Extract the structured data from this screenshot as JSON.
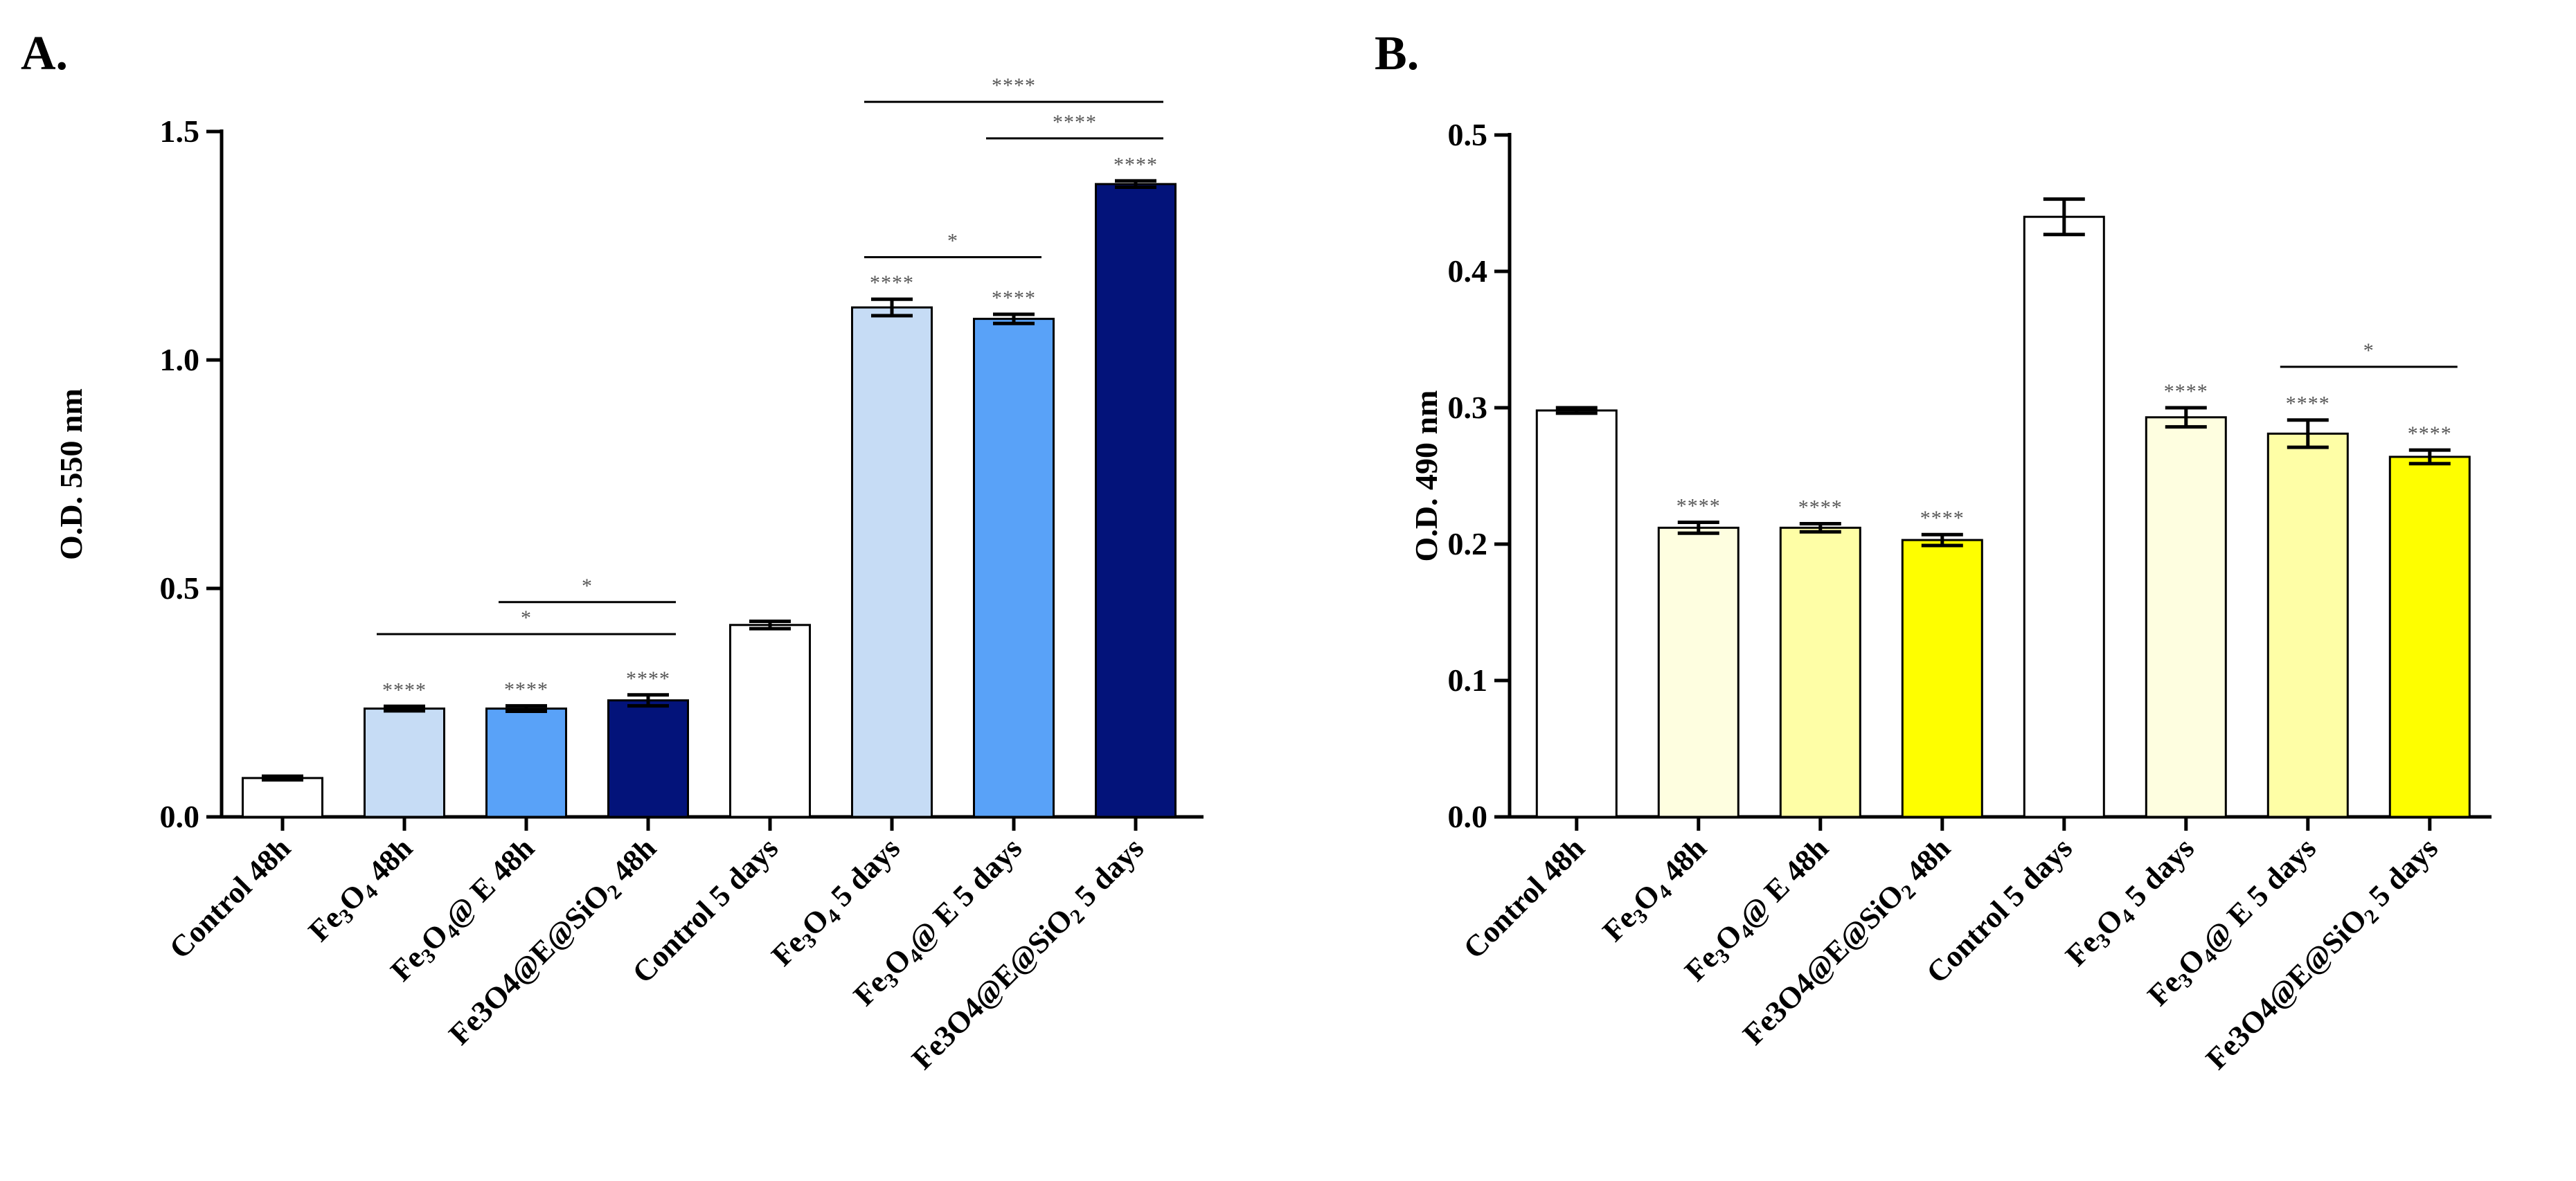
{
  "figure": {
    "label_A": "A.",
    "label_B": "B."
  },
  "chart_data": [
    {
      "type": "bar",
      "panel": "A.",
      "ylabel": "O.D. 550 nm",
      "ylim": [
        0,
        1.5
      ],
      "yticks": [
        "0.0",
        "0.5",
        "1.0",
        "1.5"
      ],
      "ytick_values": [
        0,
        0.5,
        1.0,
        1.5
      ],
      "categories": [
        {
          "main": "Control 48h"
        },
        {
          "main": "Fe3O4 48h",
          "subs": [
            "3",
            "4"
          ]
        },
        {
          "main": "Fe3O4@ E 48h",
          "subs": [
            "3",
            "4"
          ]
        },
        {
          "main": "Fe3O4@E@SiO2 48h",
          "subs": [
            "2"
          ]
        },
        {
          "main": "Control 5 days"
        },
        {
          "main": "Fe3O4 5 days",
          "subs": [
            "3",
            "4"
          ]
        },
        {
          "main": "Fe3O4@ E 5 days",
          "subs": [
            "3",
            "4"
          ]
        },
        {
          "main": "Fe3O4@E@SiO2 5 days",
          "subs": [
            "2"
          ]
        }
      ],
      "values": [
        0.085,
        0.237,
        0.237,
        0.255,
        0.42,
        1.115,
        1.09,
        1.385
      ],
      "errors": [
        0.004,
        0.005,
        0.006,
        0.012,
        0.008,
        0.018,
        0.01,
        0.007
      ],
      "colors": [
        "#ffffff",
        "#c6dcf5",
        "#59a2f8",
        "#03137a",
        "#ffffff",
        "#c6dcf5",
        "#59a2f8",
        "#03137a"
      ],
      "significance": [
        "",
        "****",
        "****",
        "****",
        "",
        "****",
        "****",
        "****"
      ],
      "brackets": [
        {
          "from": 2,
          "to": 3,
          "level": 0.47,
          "label": "*"
        },
        {
          "from": 1,
          "to": 3,
          "level": 0.4,
          "label": "*"
        },
        {
          "from": 5,
          "to": 6,
          "level": 1.225,
          "label": "*"
        },
        {
          "from": 6,
          "to": 7,
          "level": 1.485,
          "label": "****"
        },
        {
          "from": 5,
          "to": 7,
          "level": 1.565,
          "label": "****"
        }
      ]
    },
    {
      "type": "bar",
      "panel": "B.",
      "ylabel": "O.D. 490 nm",
      "ylim": [
        0,
        0.5
      ],
      "yticks": [
        "0.0",
        "0.1",
        "0.2",
        "0.3",
        "0.4",
        "0.5"
      ],
      "ytick_values": [
        0,
        0.1,
        0.2,
        0.3,
        0.4,
        0.5
      ],
      "categories": [
        {
          "main": "Control 48h"
        },
        {
          "main": "Fe3O4 48h",
          "subs": [
            "3",
            "4"
          ]
        },
        {
          "main": "Fe3O4@ E 48h",
          "subs": [
            "3",
            "4"
          ]
        },
        {
          "main": "Fe3O4@E@SiO2 48h",
          "subs": [
            "2"
          ]
        },
        {
          "main": "Control 5 days"
        },
        {
          "main": "Fe3O4 5 days",
          "subs": [
            "3",
            "4"
          ]
        },
        {
          "main": "Fe3O4@ E 5 days",
          "subs": [
            "3",
            "4"
          ]
        },
        {
          "main": "Fe3O4@E@SiO2 5 days",
          "subs": [
            "2"
          ]
        }
      ],
      "values": [
        0.298,
        0.212,
        0.212,
        0.203,
        0.44,
        0.293,
        0.281,
        0.264
      ],
      "errors": [
        0.002,
        0.004,
        0.003,
        0.004,
        0.013,
        0.007,
        0.01,
        0.005
      ],
      "colors": [
        "#ffffff",
        "#fefee0",
        "#fefea6",
        "#fefe00",
        "#ffffff",
        "#fefee0",
        "#fefea6",
        "#fefe00"
      ],
      "significance": [
        "",
        "****",
        "****",
        "****",
        "",
        "****",
        "****",
        "****"
      ],
      "brackets": [
        {
          "from": 6,
          "to": 7,
          "level": 0.33,
          "label": "*"
        }
      ]
    }
  ]
}
